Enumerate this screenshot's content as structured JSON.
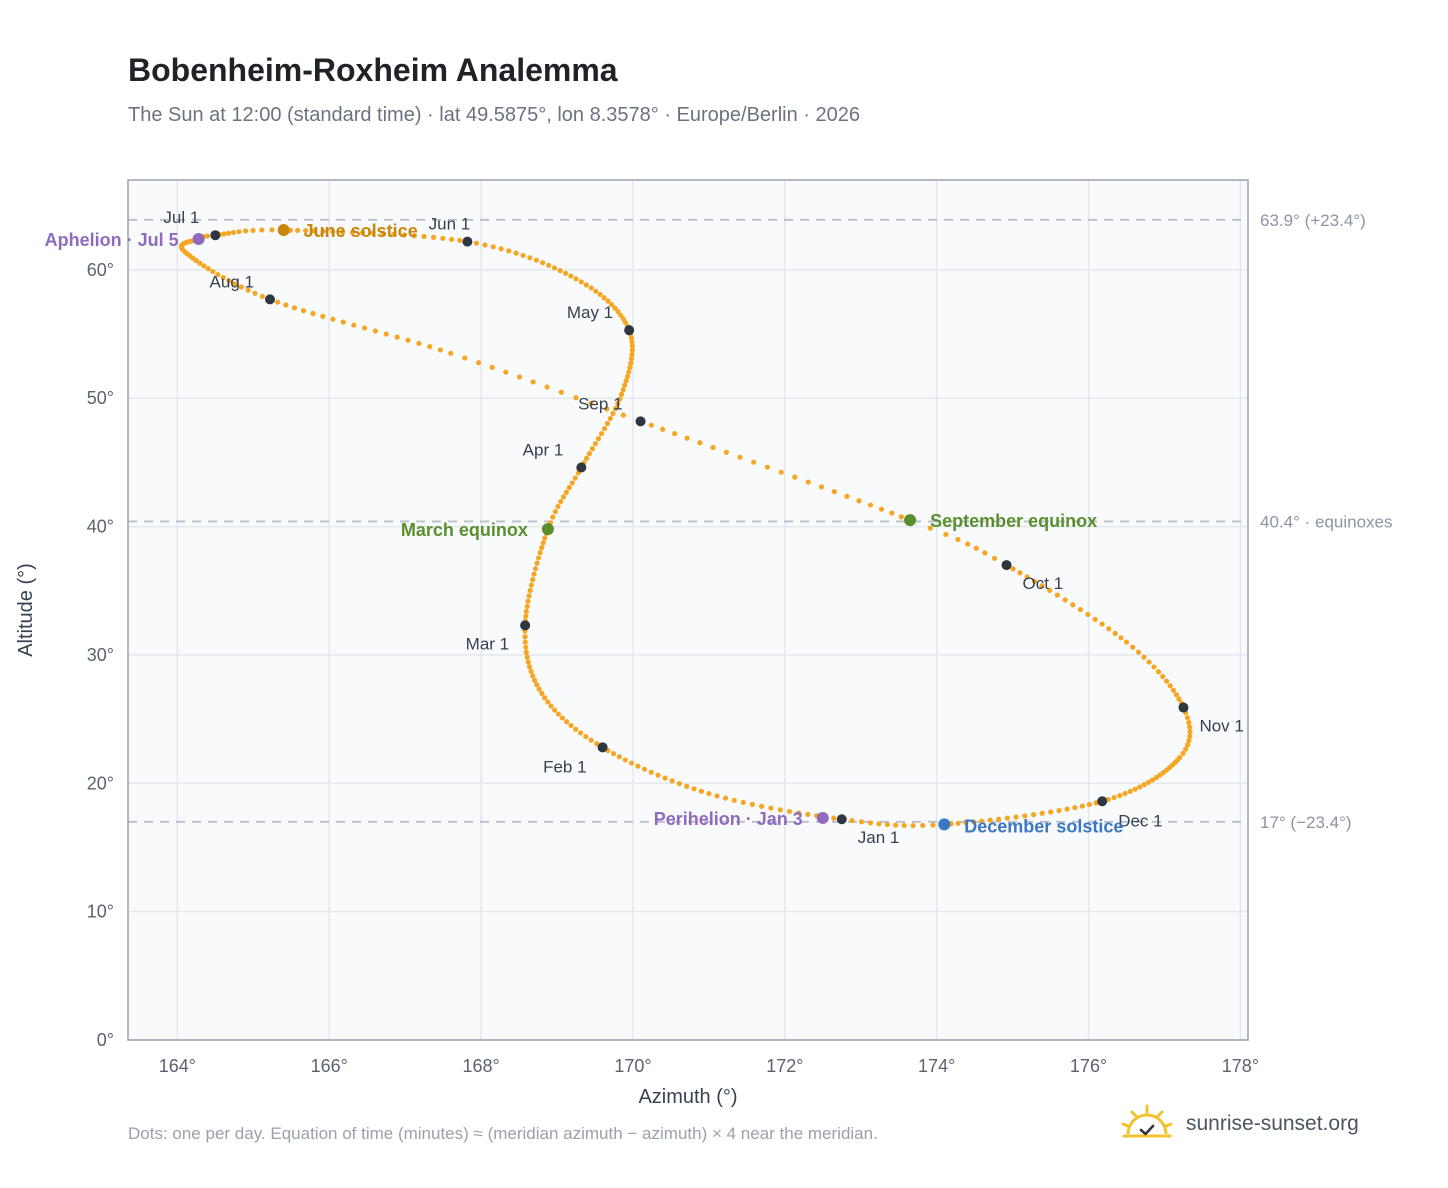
{
  "header": {
    "title": "Bobenheim-Roxheim Analemma",
    "subtitle": "The Sun at 12:00 (standard time) · lat 49.5875°, lon 8.3578° · Europe/Berlin · 2026"
  },
  "footer": {
    "note": "Dots: one per day. Equation of time (minutes) ≈ (meridian azimuth − azimuth) × 4 near the meridian.",
    "brand": "sunrise-sunset.org"
  },
  "colors": {
    "curve": "#f5a623",
    "month_dot": "#2f3640",
    "june_solstice": "#c9860a",
    "equinox": "#5a8f2e",
    "december_solstice": "#3a78c2",
    "apsis": "#8e6bbf",
    "reference_line": "#b9c0c9",
    "plot_bg": "#f8fafc",
    "grid": "#e3e8ee",
    "frame": "#9aa3ae",
    "brand_sun": "#f2c12e"
  },
  "chart_data": {
    "type": "scatter",
    "xlabel": "Azimuth (°)",
    "ylabel": "Altitude (°)",
    "xlim": [
      163.35,
      178.1
    ],
    "ylim": [
      0,
      67
    ],
    "x_ticks": [
      164,
      166,
      168,
      170,
      172,
      174,
      176,
      178
    ],
    "y_ticks": [
      0,
      10,
      20,
      30,
      40,
      50,
      60
    ],
    "x_tick_labels": [
      "164°",
      "166°",
      "168°",
      "170°",
      "172°",
      "174°",
      "176°",
      "178°"
    ],
    "y_tick_labels": [
      "0°",
      "10°",
      "20°",
      "30°",
      "40°",
      "50°",
      "60°"
    ],
    "grid": true,
    "reference_lines": [
      {
        "altitude": 63.9,
        "label": "63.9° (+23.4°)"
      },
      {
        "altitude": 40.4,
        "label": "40.4° · equinoxes"
      },
      {
        "altitude": 17.0,
        "label": "17° (−23.4°)"
      }
    ],
    "months": [
      {
        "label": "Jan 1",
        "azimuth": 172.75,
        "altitude": 17.2
      },
      {
        "label": "Feb 1",
        "azimuth": 169.6,
        "altitude": 22.8
      },
      {
        "label": "Mar 1",
        "azimuth": 168.58,
        "altitude": 32.3
      },
      {
        "label": "Apr 1",
        "azimuth": 169.32,
        "altitude": 44.6
      },
      {
        "label": "May 1",
        "azimuth": 169.95,
        "altitude": 55.3
      },
      {
        "label": "Jun 1",
        "azimuth": 167.82,
        "altitude": 62.2
      },
      {
        "label": "Jul 1",
        "azimuth": 164.5,
        "altitude": 62.7
      },
      {
        "label": "Aug 1",
        "azimuth": 165.22,
        "altitude": 57.7
      },
      {
        "label": "Sep 1",
        "azimuth": 170.1,
        "altitude": 48.2
      },
      {
        "label": "Oct 1",
        "azimuth": 174.92,
        "altitude": 37.0
      },
      {
        "label": "Nov 1",
        "azimuth": 177.25,
        "altitude": 25.9
      },
      {
        "label": "Dec 1",
        "azimuth": 176.18,
        "altitude": 18.6
      }
    ],
    "events": [
      {
        "label": "June solstice",
        "azimuth": 165.4,
        "altitude": 63.1,
        "color": "#c9860a"
      },
      {
        "label": "March equinox",
        "azimuth": 168.88,
        "altitude": 39.8,
        "color": "#5a8f2e"
      },
      {
        "label": "September equinox",
        "azimuth": 173.65,
        "altitude": 40.5,
        "color": "#5a8f2e"
      },
      {
        "label": "December solstice",
        "azimuth": 174.1,
        "altitude": 16.8,
        "color": "#3a78c2"
      },
      {
        "label": "Aphelion · Jul 5",
        "azimuth": 164.28,
        "altitude": 62.4,
        "color": "#8e6bbf"
      },
      {
        "label": "Perihelion · Jan 3",
        "azimuth": 172.5,
        "altitude": 17.3,
        "color": "#8e6bbf"
      }
    ],
    "curve_anchors": [
      {
        "day": 0,
        "azimuth": 172.75,
        "altitude": 17.2
      },
      {
        "day": 15,
        "azimuth": 171.0,
        "altitude": 19.2
      },
      {
        "day": 31,
        "azimuth": 169.6,
        "altitude": 22.8
      },
      {
        "day": 45,
        "azimuth": 168.8,
        "altitude": 27.0
      },
      {
        "day": 59,
        "azimuth": 168.58,
        "altitude": 32.3
      },
      {
        "day": 78,
        "azimuth": 168.88,
        "altitude": 39.8
      },
      {
        "day": 90,
        "azimuth": 169.32,
        "altitude": 44.6
      },
      {
        "day": 105,
        "azimuth": 169.85,
        "altitude": 50.3
      },
      {
        "day": 120,
        "azimuth": 169.95,
        "altitude": 55.3
      },
      {
        "day": 135,
        "azimuth": 169.25,
        "altitude": 59.3
      },
      {
        "day": 151,
        "azimuth": 167.82,
        "altitude": 62.2
      },
      {
        "day": 171,
        "azimuth": 165.4,
        "altitude": 63.1
      },
      {
        "day": 181,
        "azimuth": 164.5,
        "altitude": 62.7
      },
      {
        "day": 185,
        "azimuth": 164.28,
        "altitude": 62.4
      },
      {
        "day": 195,
        "azimuth": 164.1,
        "altitude": 61.4
      },
      {
        "day": 212,
        "azimuth": 165.22,
        "altitude": 57.7
      },
      {
        "day": 230,
        "azimuth": 167.6,
        "altitude": 53.5
      },
      {
        "day": 243,
        "azimuth": 170.1,
        "altitude": 48.2
      },
      {
        "day": 265,
        "azimuth": 173.65,
        "altitude": 40.5
      },
      {
        "day": 273,
        "azimuth": 174.92,
        "altitude": 37.0
      },
      {
        "day": 290,
        "azimuth": 176.5,
        "altitude": 31.0
      },
      {
        "day": 304,
        "azimuth": 177.25,
        "altitude": 25.9
      },
      {
        "day": 315,
        "azimuth": 177.2,
        "altitude": 22.0
      },
      {
        "day": 334,
        "azimuth": 176.18,
        "altitude": 18.6
      },
      {
        "day": 354,
        "azimuth": 174.1,
        "altitude": 16.8
      },
      {
        "day": 365,
        "azimuth": 172.75,
        "altitude": 17.2
      }
    ]
  }
}
